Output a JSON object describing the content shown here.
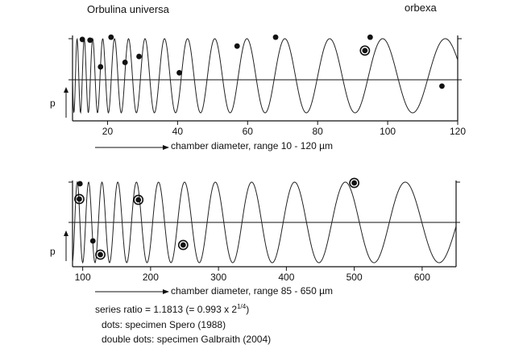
{
  "chart_data": [
    {
      "type": "line",
      "title": "Orbulina universa",
      "ylabel": "p",
      "xlabel": "chamber diameter, range 10 - 120 µm",
      "x_range": [
        10,
        120
      ],
      "x_ticks": [
        20,
        40,
        60,
        80,
        100,
        120
      ],
      "series_ratio": 1.1813,
      "first_peak": 11.3,
      "dots": [
        {
          "x": 12.8,
          "y": 0.99
        },
        {
          "x": 15.0,
          "y": 0.98
        },
        {
          "x": 18.0,
          "y": 0.62
        },
        {
          "x": 21.0,
          "y": 1.02
        },
        {
          "x": 25.0,
          "y": 0.68
        },
        {
          "x": 29.0,
          "y": 0.76
        },
        {
          "x": 40.5,
          "y": 0.54
        },
        {
          "x": 57.0,
          "y": 0.9
        },
        {
          "x": 68.0,
          "y": 1.02
        },
        {
          "x": 95.0,
          "y": 1.02
        },
        {
          "x": 115.5,
          "y": 0.36
        }
      ],
      "double_dots": [
        {
          "x": 93.5,
          "y": 0.84
        }
      ]
    },
    {
      "type": "line",
      "ylabel": "p",
      "xlabel": "chamber diameter, range 85 - 650 µm",
      "x_range": [
        85,
        650
      ],
      "x_ticks": [
        100,
        200,
        300,
        400,
        500,
        600
      ],
      "series_ratio": 1.1813,
      "first_peak": 92,
      "dots": [
        {
          "x": 96,
          "y": 0.98
        },
        {
          "x": 115,
          "y": 0.27
        }
      ],
      "double_dots": [
        {
          "x": 95,
          "y": 0.79
        },
        {
          "x": 126,
          "y": 0.1
        },
        {
          "x": 182,
          "y": 0.78
        },
        {
          "x": 248,
          "y": 0.22
        },
        {
          "x": 500,
          "y": 0.99
        }
      ]
    }
  ],
  "labels": {
    "title_left": "Orbulina universa",
    "title_right": "orbexa",
    "xlabel_top": "chamber diameter, range 10 - 120 µm",
    "xlabel_bottom": "chamber diameter, range 85 - 650 µm",
    "p_top": "p",
    "p_bottom": "p"
  },
  "notes": {
    "line1_prefix": "series ratio = 1.1813 (= 0.993 x 2",
    "line1_sup": "1/4",
    "line1_suffix": ")",
    "line2": "dots: specimen Spero (1988)",
    "line3": "double dots: specimen Galbraith (2004)"
  }
}
